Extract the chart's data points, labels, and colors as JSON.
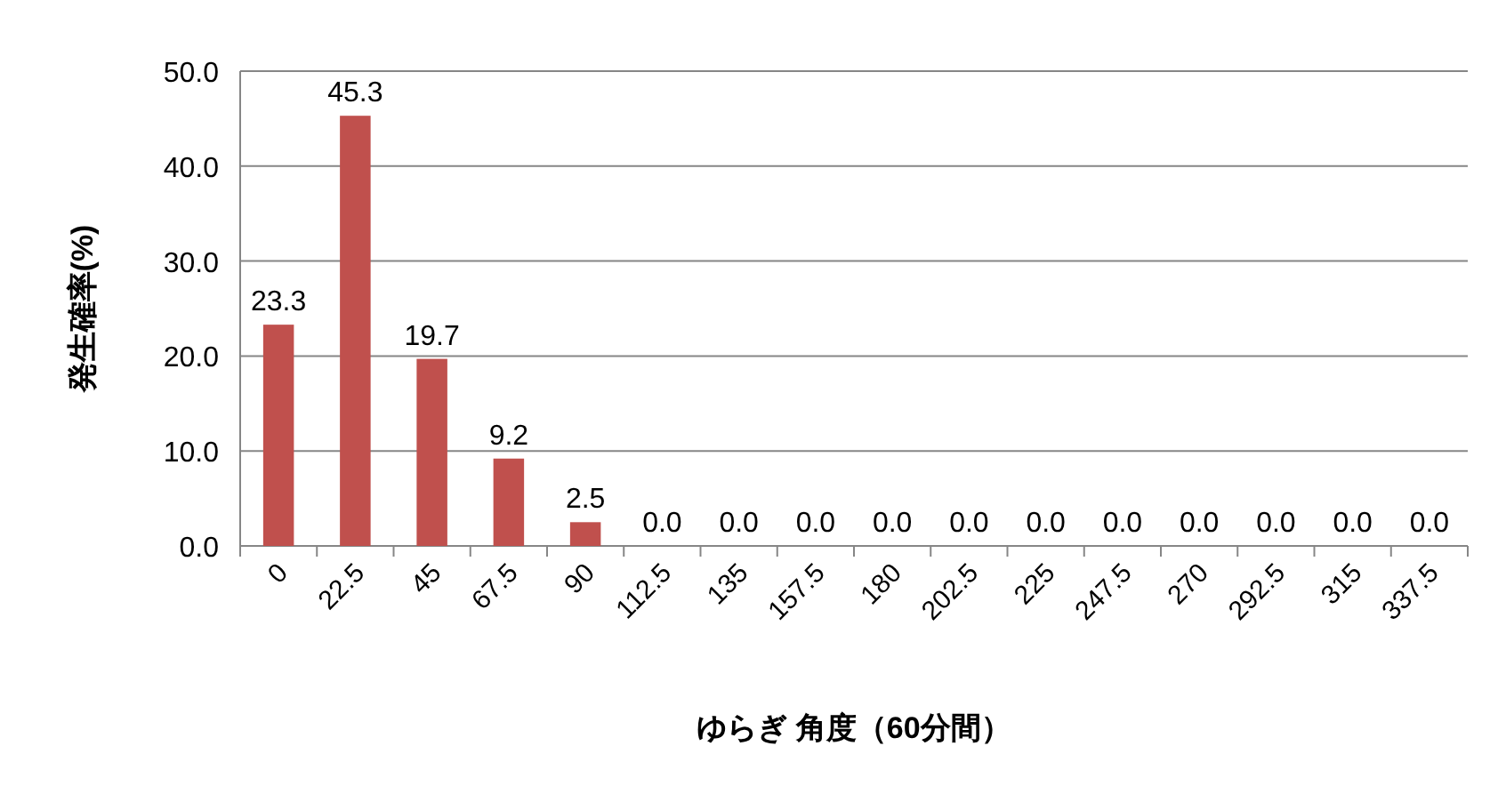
{
  "chart_data": {
    "type": "bar",
    "xlabel": "ゆらぎ 角度（60分間）",
    "ylabel": "発生確率(%)",
    "categories": [
      "0",
      "22.5",
      "45",
      "67.5",
      "90",
      "112.5",
      "135",
      "157.5",
      "180",
      "202.5",
      "225",
      "247.5",
      "270",
      "292.5",
      "315",
      "337.5"
    ],
    "values": [
      23.3,
      45.3,
      19.7,
      9.2,
      2.5,
      0,
      0,
      0,
      0,
      0,
      0,
      0,
      0,
      0,
      0,
      0
    ],
    "value_labels": [
      "23.3",
      "45.3",
      "19.7",
      "9.2",
      "2.5",
      "0.0",
      "0.0",
      "0.0",
      "0.0",
      "0.0",
      "0.0",
      "0.0",
      "0.0",
      "0.0",
      "0.0",
      "0.0"
    ],
    "color": "#c0504d",
    "ylim": [
      0,
      50
    ],
    "yticks": [
      {
        "value": 0,
        "label": "0.0"
      },
      {
        "value": 10,
        "label": "10.0"
      },
      {
        "value": 20,
        "label": "20.0"
      },
      {
        "value": 30,
        "label": "30.0"
      },
      {
        "value": 40,
        "label": "40.0"
      },
      {
        "value": 50,
        "label": "50.0"
      }
    ],
    "grid": "y"
  }
}
